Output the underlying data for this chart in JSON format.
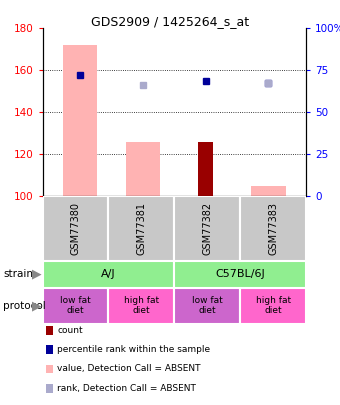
{
  "title": "GDS2909 / 1425264_s_at",
  "samples": [
    "GSM77380",
    "GSM77381",
    "GSM77382",
    "GSM77383"
  ],
  "bar_bottom": 100,
  "ylim": [
    100,
    180
  ],
  "ylim_right": [
    0,
    100
  ],
  "yticks_left": [
    100,
    120,
    140,
    160,
    180
  ],
  "yticks_right": [
    0,
    25,
    50,
    75,
    100
  ],
  "yticklabels_right": [
    "0",
    "25",
    "50",
    "75",
    "100%"
  ],
  "pink_bars": [
    172,
    126,
    0,
    105
  ],
  "dark_red_bars": [
    0,
    0,
    126,
    0
  ],
  "blue_squares": [
    158,
    0,
    155,
    154
  ],
  "light_blue_squares": [
    0,
    153,
    0,
    154
  ],
  "pink_bar_color": "#FFB3B3",
  "dark_red_color": "#990000",
  "blue_color": "#000099",
  "light_blue_color": "#AAAACC",
  "strain_color": "#90EE90",
  "protocol_colors": [
    "#CC66CC",
    "#FF66CC",
    "#CC66CC",
    "#FF66CC"
  ],
  "protocol_labels": [
    "low fat\ndiet",
    "high fat\ndiet",
    "low fat\ndiet",
    "high fat\ndiet"
  ],
  "sample_box_color": "#C8C8C8",
  "legend_items": [
    {
      "color": "#990000",
      "label": "count"
    },
    {
      "color": "#000099",
      "label": "percentile rank within the sample"
    },
    {
      "color": "#FFB3B3",
      "label": "value, Detection Call = ABSENT"
    },
    {
      "color": "#AAAACC",
      "label": "rank, Detection Call = ABSENT"
    }
  ]
}
